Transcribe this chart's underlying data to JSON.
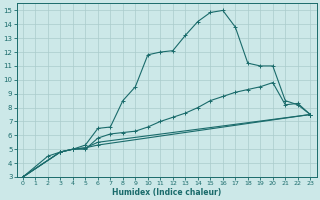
{
  "xlabel": "Humidex (Indice chaleur)",
  "bg_color": "#cce8e8",
  "grid_color": "#aacccc",
  "line_color": "#1a6b6b",
  "xlim": [
    -0.5,
    23.5
  ],
  "ylim": [
    3,
    15.5
  ],
  "xticks": [
    0,
    1,
    2,
    3,
    4,
    5,
    6,
    7,
    8,
    9,
    10,
    11,
    12,
    13,
    14,
    15,
    16,
    17,
    18,
    19,
    20,
    21,
    22,
    23
  ],
  "yticks": [
    3,
    4,
    5,
    6,
    7,
    8,
    9,
    10,
    11,
    12,
    13,
    14,
    15
  ],
  "lines": [
    {
      "x": [
        0,
        2,
        3,
        4,
        5,
        6,
        7,
        8,
        9,
        10,
        11,
        12,
        13,
        14,
        15,
        16,
        17,
        18,
        19,
        20,
        21,
        22,
        23
      ],
      "y": [
        3.0,
        4.5,
        4.8,
        5.0,
        5.3,
        6.5,
        6.6,
        8.5,
        9.5,
        11.8,
        12.0,
        12.1,
        13.2,
        14.2,
        14.85,
        15.0,
        13.8,
        11.2,
        11.0,
        11.0,
        8.5,
        8.2,
        7.5
      ]
    },
    {
      "x": [
        0,
        3,
        4,
        5,
        6,
        7,
        8,
        9,
        10,
        11,
        12,
        13,
        14,
        15,
        16,
        17,
        18,
        19,
        20,
        21,
        22,
        23
      ],
      "y": [
        3.0,
        4.8,
        5.0,
        5.0,
        5.8,
        6.1,
        6.2,
        6.3,
        6.6,
        7.0,
        7.3,
        7.6,
        8.0,
        8.5,
        8.8,
        9.1,
        9.3,
        9.5,
        9.8,
        8.2,
        8.3,
        7.5
      ]
    },
    {
      "x": [
        0,
        3,
        4,
        5,
        6,
        23
      ],
      "y": [
        3.0,
        4.8,
        5.0,
        5.1,
        5.5,
        7.5
      ]
    },
    {
      "x": [
        0,
        3,
        4,
        5,
        6,
        23
      ],
      "y": [
        3.0,
        4.8,
        5.0,
        5.1,
        5.3,
        7.5
      ]
    }
  ]
}
